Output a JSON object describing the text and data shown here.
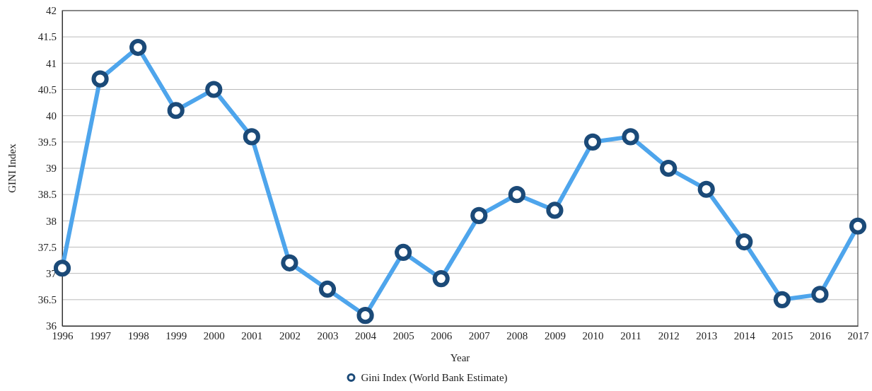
{
  "chart_data": {
    "type": "line",
    "xlabel": "Year",
    "ylabel": "GINI Index",
    "x": [
      1996,
      1997,
      1998,
      1999,
      2000,
      2001,
      2002,
      2003,
      2004,
      2005,
      2006,
      2007,
      2008,
      2009,
      2010,
      2011,
      2012,
      2013,
      2014,
      2015,
      2016,
      2017
    ],
    "series": [
      {
        "name": "Gini Index (World Bank Estimate)",
        "color": "#4ea5ec",
        "values": [
          37.1,
          40.7,
          41.3,
          40.1,
          40.5,
          39.6,
          37.2,
          36.7,
          36.2,
          37.4,
          36.9,
          38.1,
          38.5,
          38.2,
          39.5,
          39.6,
          39.0,
          38.6,
          37.6,
          36.5,
          36.6,
          37.9
        ]
      }
    ],
    "xlim": [
      1996,
      2017
    ],
    "xticks": [
      1996,
      1997,
      1998,
      1999,
      2000,
      2001,
      2002,
      2003,
      2004,
      2005,
      2006,
      2007,
      2008,
      2009,
      2010,
      2011,
      2012,
      2013,
      2014,
      2015,
      2016,
      2017
    ],
    "ylim": [
      36,
      42
    ],
    "yticks": [
      36,
      36.5,
      37,
      37.5,
      38,
      38.5,
      39,
      39.5,
      40,
      40.5,
      41,
      41.5,
      42
    ],
    "grid": "y",
    "legend": "bottom",
    "marker": "circle",
    "line_style": "solid"
  }
}
